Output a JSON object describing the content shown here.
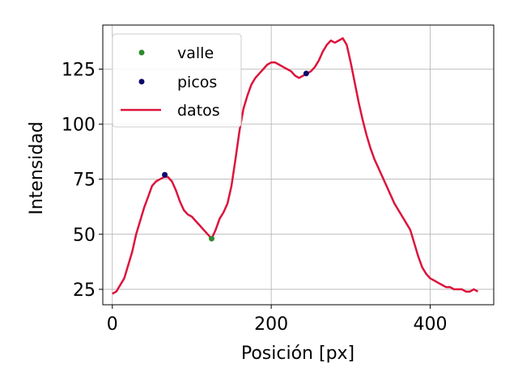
{
  "chart_data": {
    "type": "line",
    "title": "",
    "xlabel": "Posición [px]",
    "ylabel": "Intensidad",
    "xlim": [
      -12,
      480
    ],
    "ylim": [
      18,
      145
    ],
    "xticks": [
      0,
      200,
      400
    ],
    "yticks": [
      25,
      50,
      75,
      100,
      125
    ],
    "grid": true,
    "legend_position": "upper-left",
    "series": [
      {
        "name": "datos",
        "kind": "line",
        "color": "#dc143c",
        "x": [
          0,
          5,
          10,
          15,
          20,
          25,
          30,
          35,
          40,
          45,
          50,
          55,
          60,
          65,
          70,
          75,
          80,
          85,
          90,
          95,
          100,
          105,
          110,
          115,
          120,
          125,
          130,
          135,
          140,
          145,
          150,
          155,
          160,
          165,
          170,
          175,
          180,
          185,
          190,
          195,
          200,
          205,
          210,
          215,
          220,
          225,
          230,
          235,
          240,
          245,
          250,
          255,
          260,
          265,
          270,
          275,
          280,
          285,
          290,
          295,
          300,
          305,
          310,
          315,
          320,
          325,
          330,
          335,
          340,
          345,
          350,
          355,
          360,
          365,
          370,
          375,
          380,
          385,
          390,
          395,
          400,
          405,
          410,
          415,
          420,
          425,
          430,
          435,
          440,
          445,
          450,
          455,
          460
        ],
        "y": [
          23,
          24,
          27,
          30,
          36,
          42,
          50,
          56,
          62,
          67,
          72,
          74,
          75,
          76,
          76,
          74,
          70,
          65,
          61,
          59,
          58,
          56,
          54,
          52,
          50,
          48,
          52,
          57,
          60,
          64,
          72,
          84,
          97,
          107,
          113,
          118,
          121,
          123,
          125,
          127,
          128,
          128,
          127,
          126,
          125,
          124,
          122,
          121,
          122,
          123,
          124,
          126,
          129,
          133,
          136,
          138,
          137,
          138,
          139,
          136,
          128,
          119,
          110,
          102,
          95,
          89,
          84,
          80,
          76,
          72,
          68,
          64,
          61,
          58,
          55,
          52,
          46,
          40,
          35,
          32,
          30,
          29,
          28,
          27,
          26,
          26,
          25,
          25,
          25,
          24,
          24,
          25,
          24
        ]
      },
      {
        "name": "valle",
        "kind": "scatter",
        "color": "#2e8b2e",
        "x": [
          125
        ],
        "y": [
          48
        ]
      },
      {
        "name": "picos",
        "kind": "scatter",
        "color": "#0a0a6e",
        "x": [
          66,
          244
        ],
        "y": [
          77,
          123
        ]
      }
    ],
    "legend": [
      {
        "label": "valle",
        "marker": "dot",
        "color": "#2e8b2e"
      },
      {
        "label": "picos",
        "marker": "dot",
        "color": "#0a0a6e"
      },
      {
        "label": "datos",
        "marker": "line",
        "color": "#dc143c"
      }
    ]
  }
}
